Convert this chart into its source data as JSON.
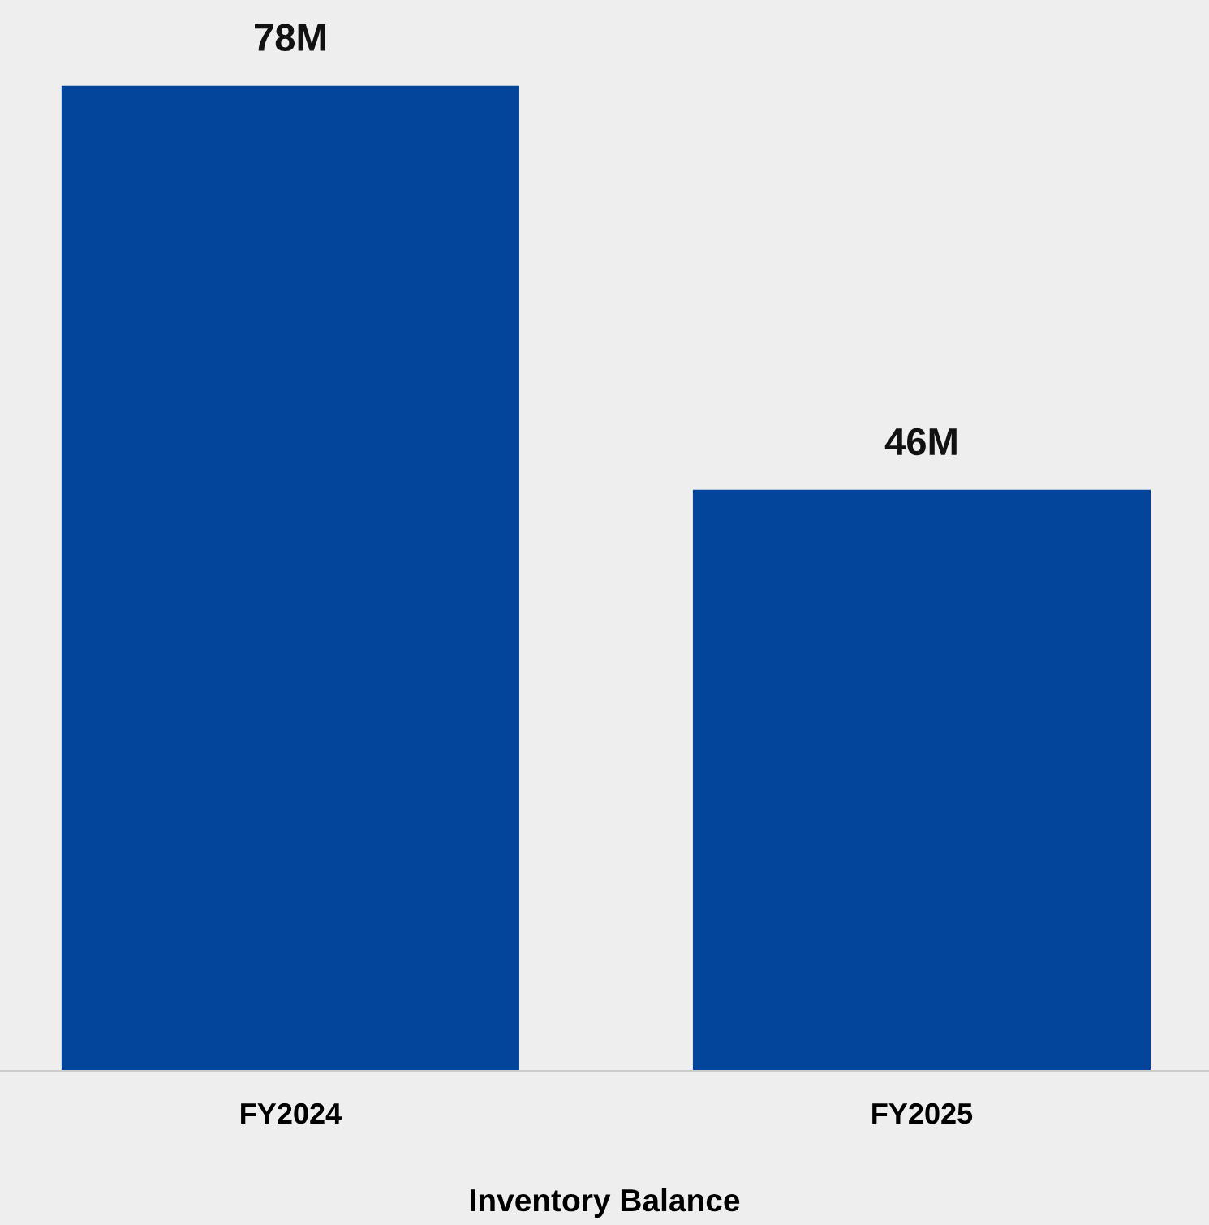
{
  "chart_data": {
    "type": "bar",
    "xlabel": "Inventory Balance",
    "categories": [
      "FY2024",
      "FY2025"
    ],
    "values": [
      78,
      46
    ],
    "value_labels": [
      "78M",
      "46M"
    ],
    "color": "#03459a",
    "grid": false,
    "legend": false,
    "tick_labels": "x"
  }
}
